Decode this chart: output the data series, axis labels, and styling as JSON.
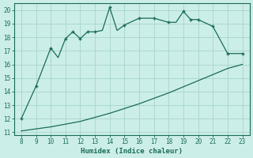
{
  "xlabel": "Humidex (Indice chaleur)",
  "bg_color": "#cceee8",
  "grid_color": "#aad8d0",
  "line_color": "#1a6b5a",
  "xlim": [
    7.5,
    23.5
  ],
  "ylim": [
    10.8,
    20.5
  ],
  "xticks": [
    8,
    9,
    10,
    11,
    12,
    13,
    14,
    15,
    16,
    17,
    18,
    19,
    20,
    21,
    22,
    23
  ],
  "yticks": [
    11,
    12,
    13,
    14,
    15,
    16,
    17,
    18,
    19,
    20
  ],
  "curve1_x": [
    8,
    9,
    10,
    10.5,
    11,
    11.5,
    12,
    12.5,
    13,
    13.5,
    14,
    14.5,
    15,
    16,
    17,
    18,
    18.5,
    19,
    19.5,
    20,
    21,
    22,
    23
  ],
  "curve1_y": [
    12.0,
    14.4,
    17.2,
    16.5,
    17.9,
    18.4,
    17.9,
    18.4,
    18.4,
    18.5,
    20.2,
    18.5,
    18.9,
    19.4,
    19.4,
    19.1,
    19.1,
    19.9,
    19.3,
    19.3,
    18.8,
    16.8,
    16.8
  ],
  "curve1_markers_x": [
    8,
    9,
    10,
    11,
    11.5,
    12,
    12.5,
    13,
    14,
    15,
    16,
    17,
    18,
    19,
    19.5,
    20,
    21,
    22,
    23
  ],
  "curve1_markers_y": [
    12.0,
    14.4,
    17.2,
    17.9,
    18.4,
    17.9,
    18.4,
    18.4,
    20.2,
    18.9,
    19.4,
    19.4,
    19.1,
    19.9,
    19.3,
    19.3,
    18.8,
    16.8,
    16.8
  ],
  "curve2_x": [
    8,
    9,
    10,
    11,
    12,
    13,
    14,
    15,
    16,
    17,
    18,
    19,
    20,
    21,
    22,
    23
  ],
  "curve2_y": [
    11.1,
    11.25,
    11.4,
    11.6,
    11.8,
    12.1,
    12.4,
    12.75,
    13.1,
    13.5,
    13.9,
    14.35,
    14.8,
    15.25,
    15.7,
    16.0
  ]
}
